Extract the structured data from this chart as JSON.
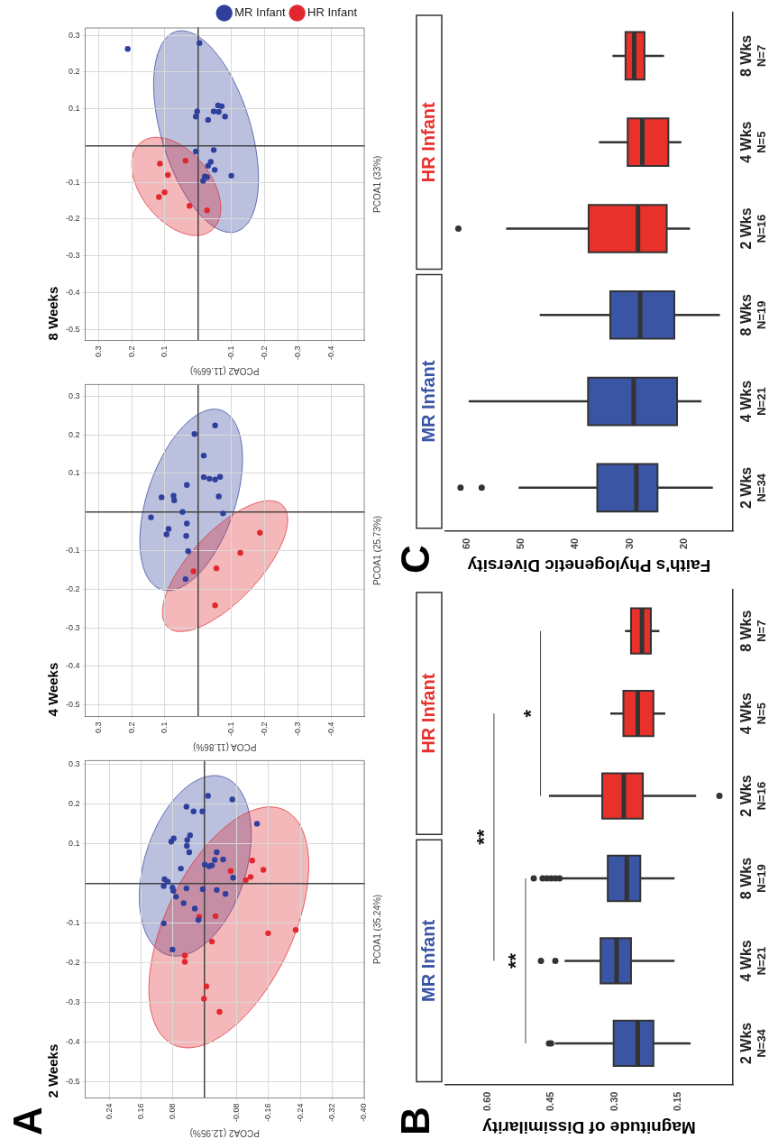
{
  "chart_data": [
    {
      "type": "scatter",
      "title": "2 Weeks",
      "xlabel": "PCOA2 (12.95%)",
      "ylabel": "PCOA1 (35.24%)",
      "annotations": [
        "A"
      ],
      "marker": "circle",
      "grid": true,
      "legend": false,
      "xlim": [
        0.3,
        -0.4
      ],
      "xticks": [
        {
          "value": 0.24,
          "label": "0.24"
        },
        {
          "value": 0.16,
          "label": "0.16"
        },
        {
          "value": 0.08,
          "label": "0.08"
        },
        {
          "value": -0.08,
          "label": "-0.08"
        },
        {
          "value": -0.16,
          "label": "-0.16"
        },
        {
          "value": -0.24,
          "label": "-0.24"
        },
        {
          "value": -0.32,
          "label": "-0.32"
        },
        {
          "value": -0.4,
          "label": "-0.40"
        }
      ],
      "ylim": [
        -0.54,
        0.31
      ],
      "yticks": [
        -0.5,
        -0.4,
        -0.3,
        -0.2,
        -0.1,
        0.1,
        0.2,
        0.3
      ],
      "series": [
        {
          "color": "#2e3f9c",
          "x": [
            -0.008,
            -0.069,
            0.046,
            0.028,
            0.006,
            -0.131,
            0.078,
            0.084,
            0.044,
            0.037,
            0.045,
            0.039,
            -0.03,
            -0.025,
            -0.046,
            0,
            -0.011,
            -0.018,
            0.06,
            -0.071,
            0.101,
            0.093,
            0.103,
            0.081,
            0.079,
            0.072,
            0.046,
            0.005,
            -0.03,
            -0.052,
            0.053,
            0.025,
            0.016,
            0.103,
            0.081
          ],
          "values": [
            0.221,
            0.212,
            0.194,
            0.182,
            0.182,
            0.151,
            0.114,
            0.106,
            0.11,
            0.122,
            0.095,
            0.079,
            0.079,
            0.06,
            0.061,
            0.048,
            0.044,
            0.046,
            0.038,
            0.015,
            0.011,
            0.005,
            -0.006,
            -0.01,
            -0.018,
            -0.033,
            -0.012,
            -0.014,
            -0.016,
            -0.026,
            -0.049,
            -0.063,
            -0.092,
            -0.1,
            -0.166
          ]
        },
        {
          "color": "#e0282e",
          "x": [
            -0.119,
            -0.147,
            -0.065,
            -0.115,
            -0.103,
            0.014,
            -0.027,
            -0.159,
            -0.228,
            -0.018,
            0.05,
            0.05,
            -0.004,
            0.002,
            -0.037
          ],
          "values": [
            0.058,
            0.035,
            0.032,
            0.017,
            0.009,
            -0.084,
            -0.082,
            -0.125,
            -0.117,
            -0.146,
            -0.181,
            -0.197,
            -0.259,
            -0.29,
            -0.323
          ]
        }
      ]
    },
    {
      "type": "scatter",
      "title": "4 Weeks",
      "xlabel": "PCOA (11.86%)",
      "ylabel": "PCOA1 (25.73%)",
      "marker": "circle",
      "grid": true,
      "legend": false,
      "xlim": [
        0.34,
        -0.5
      ],
      "xticks": [
        0.3,
        0.2,
        0.1,
        -0.1,
        -0.2,
        -0.3,
        -0.4
      ],
      "ylim": [
        -0.53,
        0.33
      ],
      "yticks": [
        -0.5,
        -0.4,
        -0.3,
        -0.2,
        -0.1,
        0.1,
        0.2,
        0.3
      ],
      "series": [
        {
          "color": "#2e3f9c",
          "x": [
            -0.051,
            0.011,
            -0.017,
            -0.017,
            -0.034,
            -0.051,
            -0.066,
            0.034,
            0.11,
            0.074,
            0.072,
            -0.062,
            0.047,
            -0.075,
            0.142,
            0.034,
            0.089,
            0.095,
            0.036,
            0.03,
            0.038
          ],
          "values": [
            0.224,
            0.202,
            0.146,
            0.09,
            0.086,
            0.084,
            0.091,
            0.07,
            0.038,
            0.042,
            0.03,
            0.04,
            0,
            -0.004,
            -0.014,
            -0.03,
            -0.044,
            -0.058,
            -0.062,
            -0.102,
            -0.174
          ]
        },
        {
          "color": "#e0282e",
          "x": [
            -0.186,
            -0.127,
            -0.055,
            0.014,
            -0.051
          ],
          "values": [
            -0.054,
            -0.106,
            -0.146,
            -0.154,
            -0.242
          ]
        }
      ]
    },
    {
      "type": "scatter",
      "title": "8 Weeks",
      "xlabel": "PCOA2 (11.66%)",
      "ylabel": "PCOA1 (33%)",
      "marker": "circle",
      "grid": true,
      "legend": "top right",
      "xlim": [
        0.34,
        -0.5
      ],
      "xticks": [
        0.3,
        0.2,
        0.1,
        -0.1,
        -0.2,
        -0.3,
        -0.4
      ],
      "ylim": [
        -0.53,
        0.32
      ],
      "yticks": [
        -0.5,
        -0.4,
        -0.3,
        -0.2,
        -0.1,
        0.1,
        0.2,
        0.3
      ],
      "series": [
        {
          "name": "MR Infant",
          "color": "#2e3f9c",
          "x": [
            0.212,
            -0.004,
            -0.06,
            -0.071,
            -0.047,
            -0.062,
            0.003,
            0.007,
            -0.03,
            -0.081,
            0.007,
            -0.047,
            -0.038,
            -0.03,
            -0.05,
            -0.1,
            -0.02,
            -0.027,
            -0.015
          ],
          "values": [
            0.263,
            0.279,
            0.109,
            0.107,
            0.093,
            0.092,
            0.093,
            0.079,
            0.07,
            0.079,
            -0.016,
            -0.012,
            -0.044,
            -0.055,
            -0.066,
            -0.082,
            -0.084,
            -0.086,
            -0.096
          ]
        },
        {
          "name": "HR Infant",
          "color": "#e0282e",
          "x": [
            0.038,
            0.115,
            0.091,
            0.101,
            0.118,
            0.026,
            -0.027
          ],
          "values": [
            -0.041,
            -0.049,
            -0.08,
            -0.127,
            -0.14,
            -0.164,
            -0.176
          ]
        }
      ]
    },
    {
      "type": "box",
      "orientation": "horizontal",
      "xlabel": "Magnitude of Dissimilarity",
      "annotations": [
        "B",
        "**",
        "**",
        "*"
      ],
      "grid": false,
      "legend": false,
      "categories": [
        "8 Wks\nN=7",
        "4 Wks\nN=5",
        "2 Wks\nN=16",
        "8 Wks\nN=19",
        "4 Wks\nN=21",
        "2 Wks\nN=34"
      ],
      "xlim": [
        0.7,
        0.02
      ],
      "xticks": [
        {
          "value": 0.6,
          "label": "0.60"
        },
        {
          "value": 0.45,
          "label": "0.45"
        },
        {
          "value": 0.3,
          "label": "0.30"
        },
        {
          "value": 0.15,
          "label": "0.15"
        }
      ],
      "series": [
        {
          "name": "MR Infant",
          "color": "#3a55a4",
          "boxes": [
            null,
            null,
            null,
            {
              "low": 0.158,
              "q1": 0.239,
              "median": 0.271,
              "q3": 0.316,
              "high": 0.423,
              "outliers": [
                0.491,
                0.47,
                0.46,
                0.45,
                0.44,
                0.43
              ]
            },
            {
              "low": 0.158,
              "q1": 0.261,
              "median": 0.295,
              "q3": 0.333,
              "high": 0.418,
              "outliers": [
                0.474,
                0.44
              ]
            },
            {
              "low": 0.12,
              "q1": 0.208,
              "median": 0.245,
              "q3": 0.302,
              "high": 0.441,
              "outliers": [
                0.455,
                0.45
              ]
            }
          ]
        },
        {
          "name": "HR Infant",
          "color": "#e8312a",
          "boxes": [
            {
              "low": 0.194,
              "q1": 0.214,
              "median": 0.235,
              "q3": 0.261,
              "high": 0.275
            },
            {
              "low": 0.18,
              "q1": 0.208,
              "median": 0.245,
              "q3": 0.279,
              "high": 0.31
            },
            {
              "low": 0.107,
              "q1": 0.233,
              "median": 0.278,
              "q3": 0.329,
              "high": 0.455,
              "outliers": [
                0.052
              ]
            },
            null,
            null,
            null
          ]
        }
      ]
    },
    {
      "type": "box",
      "orientation": "horizontal",
      "xlabel": "Faith's Phylogenetic Diversity",
      "annotations": [
        "C"
      ],
      "grid": false,
      "legend": false,
      "categories": [
        "8 Wks\nN=7",
        "4 Wks\nN=5",
        "2 Wks\nN=16",
        "8 Wks\nN=19",
        "4 Wks\nN=21",
        "2 Wks\nN=34"
      ],
      "xlim": [
        64,
        11
      ],
      "xticks": [
        60,
        50,
        40,
        30,
        20
      ],
      "series": [
        {
          "name": "MR Infant",
          "color": "#3a55a4",
          "boxes": [
            null,
            null,
            null,
            {
              "low": 13.4,
              "q1": 21.8,
              "median": 28.1,
              "q3": 33.6,
              "high": 46.6
            },
            {
              "low": 16.8,
              "q1": 21.3,
              "median": 29.3,
              "q3": 37.7,
              "high": 59.7
            },
            {
              "low": 14.7,
              "q1": 24.9,
              "median": 28.8,
              "q3": 36.0,
              "high": 50.5,
              "outliers": [
                61.2,
                57.3
              ]
            }
          ]
        },
        {
          "name": "HR Infant",
          "color": "#e8312a",
          "boxes": [
            {
              "low": 23.7,
              "q1": 27.3,
              "median": 29.2,
              "q3": 30.8,
              "high": 33.2
            },
            {
              "low": 20.5,
              "q1": 22.9,
              "median": 27.7,
              "q3": 30.4,
              "high": 35.7
            },
            {
              "low": 18.9,
              "q1": 23.2,
              "median": 28.5,
              "q3": 37.6,
              "high": 52.8,
              "outliers": [
                61.6
              ]
            },
            null,
            null,
            null
          ]
        }
      ]
    }
  ]
}
